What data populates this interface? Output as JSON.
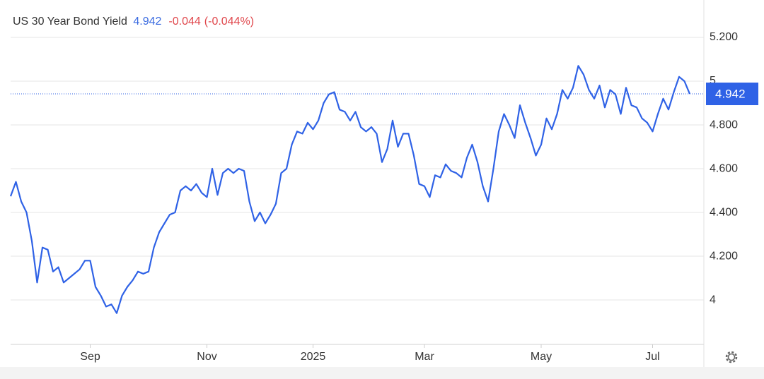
{
  "chart_data": {
    "type": "line",
    "title": "US 30 Year Bond Yield",
    "change": -0.044,
    "change_pct_label": "(-0.044%)",
    "categories": [
      null,
      null,
      null,
      null,
      null,
      null,
      null,
      null,
      null,
      null,
      null,
      null,
      null,
      null,
      null,
      "Sep",
      null,
      null,
      null,
      null,
      null,
      null,
      null,
      null,
      null,
      null,
      null,
      null,
      null,
      null,
      null,
      null,
      null,
      null,
      null,
      null,
      null,
      "Nov",
      null,
      null,
      null,
      null,
      null,
      null,
      null,
      null,
      null,
      null,
      null,
      null,
      null,
      null,
      null,
      null,
      null,
      null,
      null,
      "2025",
      null,
      null,
      null,
      null,
      null,
      null,
      null,
      null,
      null,
      null,
      null,
      null,
      null,
      null,
      null,
      null,
      null,
      null,
      null,
      null,
      "Mar",
      null,
      null,
      null,
      null,
      null,
      null,
      null,
      null,
      null,
      null,
      null,
      null,
      null,
      null,
      null,
      null,
      null,
      null,
      null,
      null,
      null,
      "May",
      null,
      null,
      null,
      null,
      null,
      null,
      null,
      null,
      null,
      null,
      null,
      null,
      null,
      null,
      null,
      null,
      null,
      null,
      null,
      null,
      "Jul",
      null,
      null,
      null,
      null,
      null,
      null,
      null
    ],
    "values": [
      4.474,
      4.54,
      4.45,
      4.4,
      4.27,
      4.08,
      4.24,
      4.23,
      4.13,
      4.15,
      4.08,
      4.1,
      4.12,
      4.14,
      4.18,
      4.18,
      4.06,
      4.02,
      3.97,
      3.98,
      3.94,
      4.02,
      4.06,
      4.09,
      4.13,
      4.12,
      4.13,
      4.24,
      4.31,
      4.35,
      4.39,
      4.4,
      4.5,
      4.52,
      4.5,
      4.53,
      4.49,
      4.47,
      4.6,
      4.48,
      4.58,
      4.6,
      4.58,
      4.6,
      4.59,
      4.45,
      4.36,
      4.4,
      4.35,
      4.39,
      4.44,
      4.58,
      4.6,
      4.71,
      4.77,
      4.76,
      4.81,
      4.78,
      4.82,
      4.9,
      4.94,
      4.95,
      4.87,
      4.86,
      4.82,
      4.86,
      4.79,
      4.77,
      4.79,
      4.76,
      4.63,
      4.69,
      4.82,
      4.7,
      4.76,
      4.76,
      4.66,
      4.53,
      4.52,
      4.47,
      4.57,
      4.56,
      4.62,
      4.59,
      4.58,
      4.56,
      4.65,
      4.71,
      4.63,
      4.52,
      4.45,
      4.6,
      4.77,
      4.85,
      4.8,
      4.74,
      4.89,
      4.81,
      4.74,
      4.66,
      4.71,
      4.83,
      4.78,
      4.85,
      4.96,
      4.92,
      4.97,
      5.07,
      5.03,
      4.96,
      4.92,
      4.98,
      4.88,
      4.96,
      4.94,
      4.85,
      4.97,
      4.89,
      4.88,
      4.83,
      4.81,
      4.77,
      4.85,
      4.92,
      4.87,
      4.95,
      5.02,
      5.0,
      4.942
    ],
    "color": "#2f62e6",
    "value_color": "#3a6be0",
    "change_color": "#e0474c",
    "ylim": [
      3.797,
      5.371
    ],
    "yticks": [
      {
        "value": 4,
        "label": "4"
      },
      {
        "value": 4.2,
        "label": "4.200"
      },
      {
        "value": 4.4,
        "label": "4.400"
      },
      {
        "value": 4.6,
        "label": "4.600"
      },
      {
        "value": 4.8,
        "label": "4.800"
      },
      {
        "value": 5,
        "label": "5"
      },
      {
        "value": 5.2,
        "label": "5.200"
      }
    ],
    "grid": true
  }
}
